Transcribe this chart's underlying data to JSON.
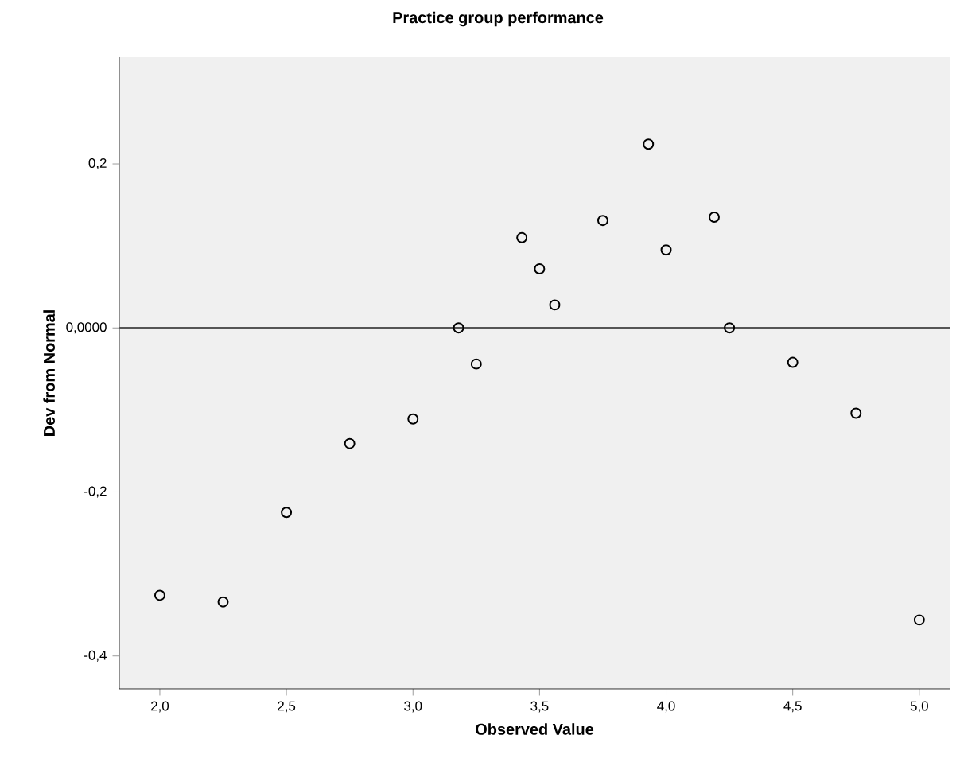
{
  "chart_data": {
    "type": "scatter",
    "title": "Practice group performance",
    "xlabel": "Observed Value",
    "ylabel": "Dev from Normal",
    "x": [
      2.0,
      2.25,
      2.5,
      2.75,
      3.0,
      3.18,
      3.25,
      3.43,
      3.5,
      3.56,
      3.75,
      3.93,
      4.0,
      4.19,
      4.25,
      4.5,
      4.75,
      5.0
    ],
    "values": [
      -0.326,
      -0.334,
      -0.225,
      -0.141,
      -0.111,
      0.0,
      -0.044,
      0.11,
      0.072,
      0.028,
      0.131,
      0.224,
      0.095,
      0.135,
      0.0,
      -0.042,
      -0.104,
      -0.356
    ],
    "color": "#000000",
    "marker": "circle",
    "xlim": [
      1.84,
      5.12
    ],
    "ylim": [
      -0.44,
      0.33
    ],
    "xticks": [
      {
        "value": 2.0,
        "label": "2,0"
      },
      {
        "value": 2.5,
        "label": "2,5"
      },
      {
        "value": 3.0,
        "label": "3,0"
      },
      {
        "value": 3.5,
        "label": "3,5"
      },
      {
        "value": 4.0,
        "label": "4,0"
      },
      {
        "value": 4.5,
        "label": "4,5"
      },
      {
        "value": 5.0,
        "label": "5,0"
      }
    ],
    "yticks": [
      {
        "value": -0.4,
        "label": "-0,4"
      },
      {
        "value": -0.2,
        "label": "-0,2"
      },
      {
        "value": 0,
        "label": "0,0000"
      },
      {
        "value": 0.2,
        "label": "0,2"
      }
    ],
    "ref_lines": [
      {
        "axis": "y",
        "value": 0,
        "color": "#555555"
      }
    ]
  }
}
